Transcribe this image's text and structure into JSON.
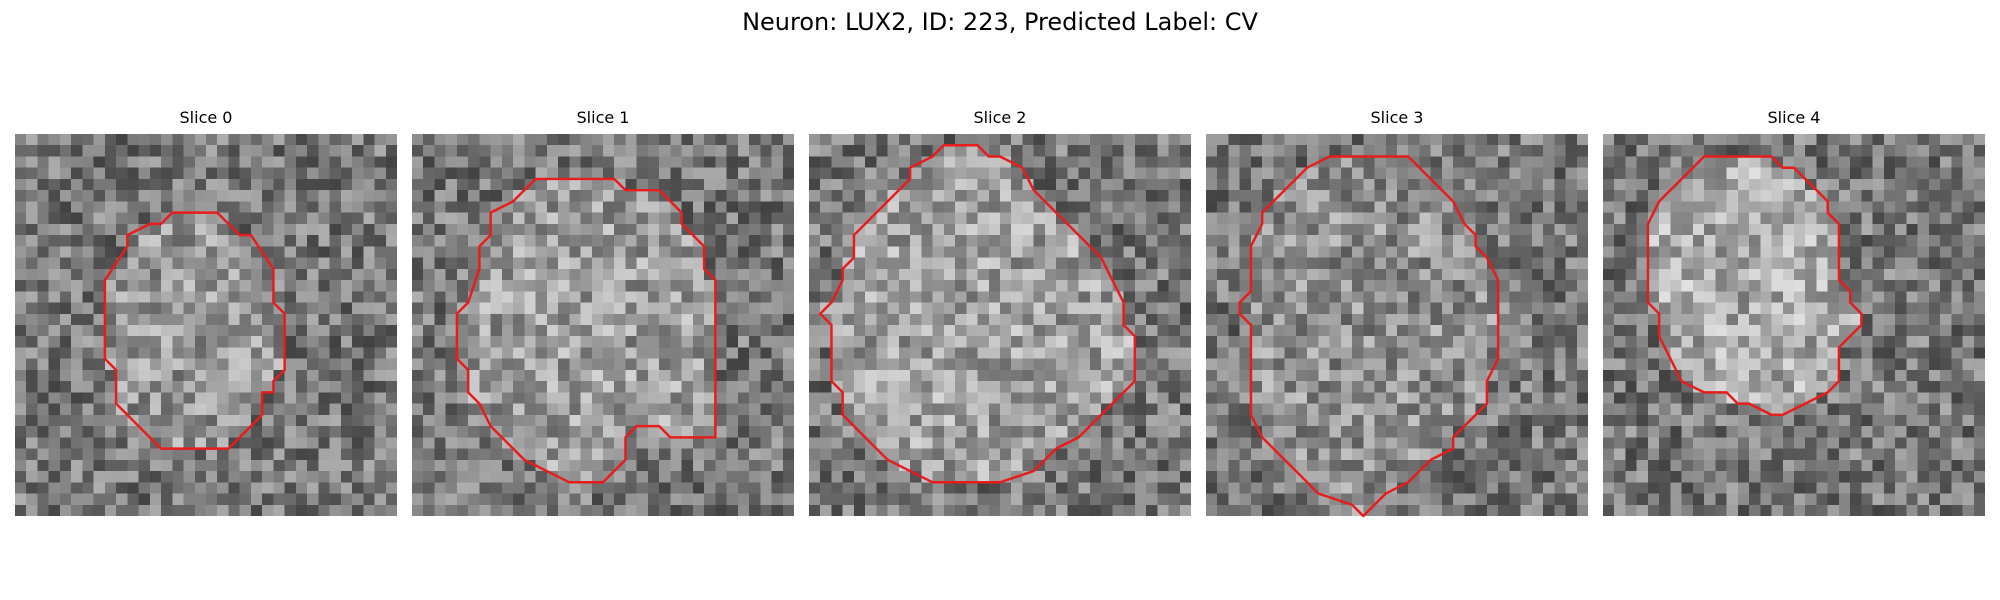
{
  "figure": {
    "title": "Neuron: LUX2, ID: 223, Predicted Label: CV",
    "contour_color": "#e81c1c",
    "panels": [
      {
        "label": "Slice 0",
        "center_brightness": 0.75,
        "contour": [
          [
            14,
            7
          ],
          [
            18,
            7
          ],
          [
            20,
            9
          ],
          [
            21,
            9
          ],
          [
            23,
            12
          ],
          [
            23,
            15
          ],
          [
            24,
            16
          ],
          [
            24,
            21
          ],
          [
            23,
            22
          ],
          [
            23,
            23
          ],
          [
            22,
            23
          ],
          [
            22,
            25
          ],
          [
            19,
            28
          ],
          [
            13,
            28
          ],
          [
            11,
            26
          ],
          [
            9,
            24
          ],
          [
            9,
            23
          ],
          [
            9,
            21
          ],
          [
            8,
            20
          ],
          [
            8,
            13
          ],
          [
            10,
            10
          ],
          [
            10,
            9
          ],
          [
            12,
            8
          ],
          [
            13,
            8
          ]
        ]
      },
      {
        "label": "Slice 1",
        "center_brightness": 0.78,
        "contour": [
          [
            11,
            4
          ],
          [
            18,
            4
          ],
          [
            19,
            5
          ],
          [
            22,
            5
          ],
          [
            24,
            7
          ],
          [
            24,
            8
          ],
          [
            25,
            9
          ],
          [
            26,
            10
          ],
          [
            26,
            12
          ],
          [
            27,
            13
          ],
          [
            27,
            27
          ],
          [
            23,
            27
          ],
          [
            22,
            26
          ],
          [
            20,
            26
          ],
          [
            19,
            27
          ],
          [
            19,
            29
          ],
          [
            18,
            30
          ],
          [
            17,
            31
          ],
          [
            14,
            31
          ],
          [
            12,
            30
          ],
          [
            10,
            29
          ],
          [
            8,
            27
          ],
          [
            7,
            26
          ],
          [
            6,
            24
          ],
          [
            5,
            23
          ],
          [
            5,
            21
          ],
          [
            4,
            20
          ],
          [
            4,
            16
          ],
          [
            5,
            15
          ],
          [
            6,
            12
          ],
          [
            6,
            10
          ],
          [
            7,
            9
          ],
          [
            7,
            7
          ],
          [
            9,
            6
          ],
          [
            10,
            5
          ]
        ]
      },
      {
        "label": "Slice 2",
        "center_brightness": 0.8,
        "contour": [
          [
            12,
            1
          ],
          [
            15,
            1
          ],
          [
            16,
            2
          ],
          [
            17,
            2
          ],
          [
            19,
            3
          ],
          [
            20,
            5
          ],
          [
            23,
            8
          ],
          [
            24,
            9
          ],
          [
            26,
            11
          ],
          [
            27,
            13
          ],
          [
            28,
            15
          ],
          [
            28,
            17
          ],
          [
            29,
            18
          ],
          [
            29,
            22
          ],
          [
            28,
            23
          ],
          [
            26,
            25
          ],
          [
            25,
            26
          ],
          [
            24,
            27
          ],
          [
            22,
            28
          ],
          [
            21,
            29
          ],
          [
            20,
            30
          ],
          [
            17,
            31
          ],
          [
            11,
            31
          ],
          [
            9,
            30
          ],
          [
            7,
            29
          ],
          [
            6,
            28
          ],
          [
            5,
            27
          ],
          [
            4,
            26
          ],
          [
            3,
            25
          ],
          [
            3,
            23
          ],
          [
            2,
            22
          ],
          [
            2,
            17
          ],
          [
            1,
            16
          ],
          [
            2,
            15
          ],
          [
            3,
            13
          ],
          [
            3,
            12
          ],
          [
            4,
            11
          ],
          [
            4,
            9
          ],
          [
            5,
            8
          ],
          [
            7,
            6
          ],
          [
            8,
            5
          ],
          [
            9,
            4
          ],
          [
            9,
            3
          ],
          [
            11,
            2
          ]
        ]
      },
      {
        "label": "Slice 3",
        "center_brightness": 0.72,
        "contour": [
          [
            11,
            2
          ],
          [
            18,
            2
          ],
          [
            20,
            4
          ],
          [
            21,
            5
          ],
          [
            22,
            6
          ],
          [
            23,
            8
          ],
          [
            24,
            9
          ],
          [
            24,
            10
          ],
          [
            25,
            11
          ],
          [
            26,
            13
          ],
          [
            26,
            20
          ],
          [
            25,
            22
          ],
          [
            25,
            24
          ],
          [
            24,
            25
          ],
          [
            23,
            26
          ],
          [
            22,
            27
          ],
          [
            22,
            28
          ],
          [
            20,
            29
          ],
          [
            19,
            30
          ],
          [
            18,
            31
          ],
          [
            16,
            32
          ],
          [
            15,
            33
          ],
          [
            14,
            34
          ],
          [
            13,
            33
          ],
          [
            10,
            32
          ],
          [
            8,
            30
          ],
          [
            7,
            29
          ],
          [
            6,
            28
          ],
          [
            5,
            27
          ],
          [
            4,
            25
          ],
          [
            4,
            17
          ],
          [
            3,
            16
          ],
          [
            3,
            15
          ],
          [
            4,
            14
          ],
          [
            4,
            10
          ],
          [
            5,
            8
          ],
          [
            5,
            7
          ],
          [
            7,
            5
          ],
          [
            8,
            4
          ],
          [
            9,
            3
          ]
        ]
      },
      {
        "label": "Slice 4",
        "center_brightness": 0.85,
        "contour": [
          [
            9,
            2
          ],
          [
            15,
            2
          ],
          [
            16,
            3
          ],
          [
            17,
            3
          ],
          [
            19,
            5
          ],
          [
            20,
            6
          ],
          [
            20,
            7
          ],
          [
            21,
            8
          ],
          [
            21,
            13
          ],
          [
            22,
            14
          ],
          [
            22,
            15
          ],
          [
            23,
            16
          ],
          [
            23,
            17
          ],
          [
            22,
            18
          ],
          [
            21,
            19
          ],
          [
            21,
            21
          ],
          [
            21,
            22
          ],
          [
            20,
            23
          ],
          [
            18,
            24
          ],
          [
            16,
            25
          ],
          [
            15,
            25
          ],
          [
            13,
            24
          ],
          [
            12,
            24
          ],
          [
            11,
            23
          ],
          [
            9,
            23
          ],
          [
            7,
            22
          ],
          [
            6,
            20
          ],
          [
            5,
            18
          ],
          [
            5,
            16
          ],
          [
            4,
            15
          ],
          [
            4,
            8
          ],
          [
            5,
            6
          ],
          [
            6,
            5
          ],
          [
            7,
            4
          ]
        ]
      }
    ]
  }
}
